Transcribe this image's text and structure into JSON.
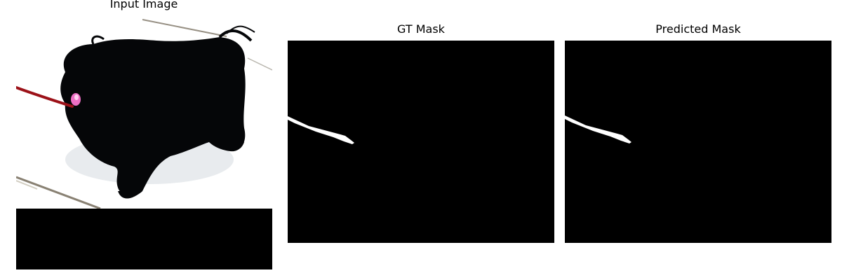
{
  "panels": [
    {
      "title": "Input Image"
    },
    {
      "title": "GT Mask"
    },
    {
      "title": "Predicted Mask"
    }
  ]
}
